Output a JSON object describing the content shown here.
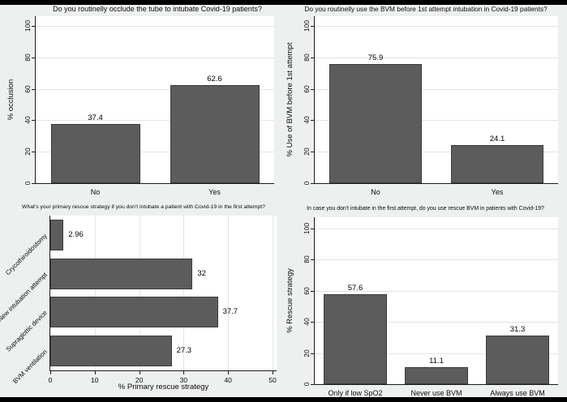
{
  "figure_caption": "Survey results on airway management of Covid-19 patients (four bar charts)",
  "style": {
    "background": "#eef0ef",
    "plot_background": "#ffffff",
    "bar_fill": "#5c5c5c",
    "bar_edge": "#3c3c3c",
    "grid_color": "#e2e4e3",
    "axis_color": "#1b1b1b",
    "frame_color": "#000000"
  },
  "chart_data": [
    {
      "id": "occlude-tube",
      "type": "bar",
      "orientation": "vertical",
      "title": "Do you routinelly occlude the tube to intubate Covid-19 patients?",
      "ylabel": "% occlusion",
      "xlabel": "",
      "categories": [
        "No",
        "Yes"
      ],
      "values": [
        37.4,
        62.6
      ],
      "value_labels": [
        "37.4",
        "62.6"
      ],
      "ylim": [
        0,
        100
      ],
      "yticks": [
        0,
        20,
        40,
        60,
        80,
        100
      ],
      "grid": true,
      "legend": "none"
    },
    {
      "id": "bvm-before-first-attempt",
      "type": "bar",
      "orientation": "vertical",
      "title": "Do you routinelly use the BVM before 1st attempt intubation in Covid-19 patients?",
      "ylabel": "% Use of BVM before 1st attempt",
      "xlabel": "",
      "categories": [
        "No",
        "Yes"
      ],
      "values": [
        75.9,
        24.1
      ],
      "value_labels": [
        "75.9",
        "24.1"
      ],
      "ylim": [
        0,
        100
      ],
      "yticks": [
        0,
        20,
        40,
        60,
        80,
        100
      ],
      "grid": true,
      "legend": "none"
    },
    {
      "id": "primary-rescue-strategy",
      "type": "bar",
      "orientation": "horizontal",
      "title": "What's your primary rescue strategy if you don't intubate a patient with Covid-19 in the first attempt?",
      "ylabel": "",
      "xlabel": "% Primary rescue strategy",
      "categories": [
        "Crycothiroidostomy",
        "New intubation attempt",
        "Supraglottic device",
        "BVM ventilation"
      ],
      "values": [
        2.96,
        32,
        37.7,
        27.3
      ],
      "value_labels": [
        "2.96",
        "32",
        "37.7",
        "27.3"
      ],
      "xlim": [
        0,
        51
      ],
      "xticks": [
        0,
        10,
        20,
        30,
        40,
        50
      ],
      "grid": true,
      "legend": "none"
    },
    {
      "id": "rescue-bvm",
      "type": "bar",
      "orientation": "vertical",
      "title": "In case you don't intubate in the first attempt, do you use rescue BVM in patients with Covid-19?",
      "ylabel": "% Rescue strategy",
      "xlabel": "",
      "categories": [
        "Only if low SpO2",
        "Never use BVM",
        "Always use BVM"
      ],
      "values": [
        57.6,
        11.1,
        31.3
      ],
      "value_labels": [
        "57.6",
        "11.1",
        "31.3"
      ],
      "ylim": [
        0,
        100
      ],
      "yticks": [
        0,
        20,
        40,
        60,
        80,
        100
      ],
      "grid": true,
      "legend": "none"
    }
  ]
}
